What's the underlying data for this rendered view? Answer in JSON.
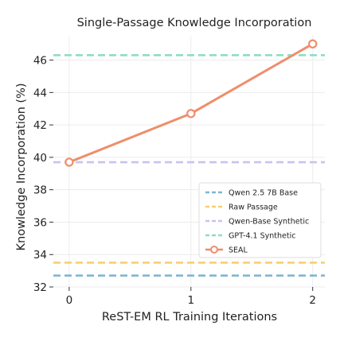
{
  "chart_data": {
    "type": "line",
    "title": "Single-Passage Knowledge Incorporation",
    "xlabel": "ReST-EM RL Training Iterations",
    "ylabel": "Knowledge Incorporation (%)",
    "x": [
      0,
      1,
      2
    ],
    "xticks": [
      "0",
      "1",
      "2"
    ],
    "yticks": [
      "32",
      "34",
      "36",
      "38",
      "40",
      "42",
      "44",
      "46"
    ],
    "ylim": [
      32,
      47.5
    ],
    "grid": true,
    "legend_position": "lower-right",
    "series": [
      {
        "name": "Qwen 2.5 7B Base",
        "kind": "hline",
        "value": 32.7,
        "color": "#7fb7cf",
        "dash": true
      },
      {
        "name": "Raw Passage",
        "kind": "hline",
        "value": 33.5,
        "color": "#f8cf6e",
        "dash": true
      },
      {
        "name": "Qwen-Base Synthetic",
        "kind": "hline",
        "value": 39.7,
        "color": "#c9c3ec",
        "dash": true
      },
      {
        "name": "GPT-4.1 Synthetic",
        "kind": "hline",
        "value": 46.3,
        "color": "#8fddc1",
        "dash": true
      },
      {
        "name": "SEAL",
        "kind": "line",
        "values": [
          39.7,
          42.7,
          47.0
        ],
        "color": "#ee8e6b",
        "dash": false
      }
    ]
  }
}
